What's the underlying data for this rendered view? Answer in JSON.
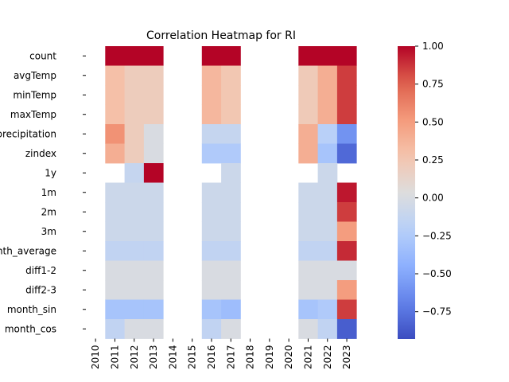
{
  "chart_data": {
    "type": "heatmap",
    "title": "Correlation Heatmap for RI",
    "x_categories": [
      "2010",
      "2011",
      "2012",
      "2013",
      "2014",
      "2015",
      "2016",
      "2017",
      "2018",
      "2019",
      "2020",
      "2021",
      "2022",
      "2023"
    ],
    "y_categories": [
      "count",
      "avgTemp",
      "minTemp",
      "maxTemp",
      "precipitation",
      "zindex",
      "1y",
      "1m",
      "2m",
      "3m",
      "month_average",
      "diff1-2",
      "diff2-3",
      "month_sin",
      "month_cos"
    ],
    "values": [
      [
        null,
        1.0,
        1.0,
        1.0,
        null,
        null,
        1.0,
        1.0,
        null,
        null,
        null,
        1.0,
        1.0,
        1.0
      ],
      [
        null,
        0.3,
        0.2,
        0.2,
        null,
        null,
        0.35,
        0.25,
        null,
        null,
        null,
        0.22,
        0.4,
        0.85
      ],
      [
        null,
        0.3,
        0.2,
        0.2,
        null,
        null,
        0.35,
        0.25,
        null,
        null,
        null,
        0.22,
        0.4,
        0.85
      ],
      [
        null,
        0.3,
        0.2,
        0.2,
        null,
        null,
        0.35,
        0.25,
        null,
        null,
        null,
        0.22,
        0.4,
        0.85
      ],
      [
        null,
        0.55,
        0.2,
        0.0,
        null,
        null,
        -0.12,
        -0.12,
        null,
        null,
        null,
        0.4,
        -0.2,
        -0.6
      ],
      [
        null,
        0.4,
        0.2,
        0.0,
        null,
        null,
        -0.25,
        -0.25,
        null,
        null,
        null,
        0.4,
        -0.3,
        -0.8
      ],
      [
        null,
        null,
        -0.12,
        1.0,
        null,
        null,
        null,
        -0.08,
        null,
        null,
        null,
        null,
        -0.08,
        null
      ],
      [
        null,
        -0.08,
        -0.08,
        -0.08,
        null,
        null,
        -0.08,
        -0.08,
        null,
        null,
        null,
        -0.08,
        -0.08,
        0.95
      ],
      [
        null,
        -0.08,
        -0.08,
        -0.08,
        null,
        null,
        -0.08,
        -0.08,
        null,
        null,
        null,
        -0.08,
        -0.08,
        0.85
      ],
      [
        null,
        -0.08,
        -0.08,
        -0.08,
        null,
        null,
        -0.08,
        -0.08,
        null,
        null,
        null,
        -0.08,
        -0.08,
        0.5
      ],
      [
        null,
        -0.15,
        -0.15,
        -0.15,
        null,
        null,
        -0.15,
        -0.15,
        null,
        null,
        null,
        -0.15,
        -0.15,
        0.9
      ],
      [
        null,
        0.0,
        0.0,
        0.0,
        null,
        null,
        0.0,
        0.0,
        null,
        null,
        null,
        0.0,
        0.0,
        0.0
      ],
      [
        null,
        0.0,
        0.0,
        0.0,
        null,
        null,
        0.0,
        0.0,
        null,
        null,
        null,
        0.0,
        0.0,
        0.5
      ],
      [
        null,
        -0.3,
        -0.3,
        -0.3,
        null,
        null,
        -0.3,
        -0.35,
        null,
        null,
        null,
        -0.3,
        -0.25,
        0.85
      ],
      [
        null,
        -0.15,
        0.0,
        0.0,
        null,
        null,
        -0.15,
        0.0,
        null,
        null,
        null,
        0.0,
        -0.15,
        -0.85
      ]
    ],
    "vmin": -0.93,
    "vmax": 1.0,
    "colormap": "coolwarm",
    "colorbar_ticks": [
      "1.00",
      "0.75",
      "0.50",
      "0.25",
      "0.00",
      "−0.25",
      "−0.50",
      "−0.75"
    ],
    "colorbar_tick_values": [
      1.0,
      0.75,
      0.5,
      0.25,
      0.0,
      -0.25,
      -0.5,
      -0.75
    ],
    "grid": false,
    "legend": "colorbar-right"
  }
}
